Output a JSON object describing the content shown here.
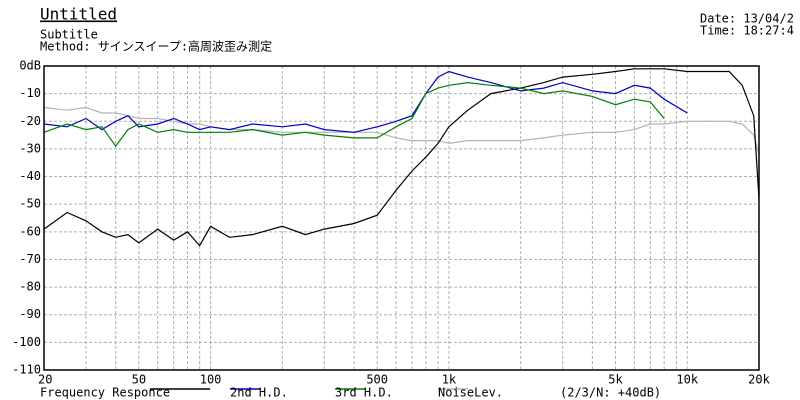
{
  "chart_data": {
    "type": "line",
    "title": "Untitled",
    "subtitle": "Subtitle",
    "method": "Method:  サインスイープ:高周波歪み測定",
    "date": "Date: 13/04/2",
    "time": "Time: 18:27:4",
    "note": "(2/3/N: +40dB)",
    "xscale": "log",
    "grid": true,
    "x": [
      20,
      25,
      30,
      35,
      40,
      45,
      50,
      60,
      70,
      80,
      90,
      100,
      120,
      150,
      200,
      250,
      300,
      400,
      500,
      600,
      700,
      800,
      900,
      1000,
      1200,
      1500,
      2000,
      2500,
      3000,
      4000,
      5000,
      6000,
      7000,
      8000,
      10000,
      12000,
      15000,
      17000,
      19000,
      20000
    ],
    "series": [
      {
        "name": "Frequency Responce",
        "color": "#000000",
        "values": [
          -59,
          -53,
          -56,
          -60,
          -62,
          -61,
          -64,
          -59,
          -63,
          -60,
          -65,
          -58,
          -62,
          -61,
          -58,
          -61,
          -59,
          -57,
          -54,
          -45,
          -38,
          -33,
          -28,
          -22,
          -16,
          -10,
          -8,
          -6,
          -4,
          -3,
          -2,
          -1,
          -1,
          -1,
          -2,
          -2,
          -2,
          -7,
          -18,
          -48
        ]
      },
      {
        "name": "2nd H.D.",
        "color": "#0000c0",
        "values": [
          -21,
          -22,
          -19,
          -23,
          -20,
          -18,
          -22,
          -21,
          -19,
          -21,
          -23,
          -22,
          -23,
          -21,
          -22,
          -21,
          -23,
          -24,
          -22,
          -20,
          -18,
          -10,
          -4,
          -2,
          -4,
          -6,
          -9,
          -8,
          -6,
          -9,
          -10,
          -7,
          -8,
          -12,
          -17,
          null,
          null,
          null,
          null,
          null
        ]
      },
      {
        "name": "3rd H.D.",
        "color": "#008000",
        "values": [
          -24,
          -21,
          -23,
          -22,
          -29,
          -23,
          -21,
          -24,
          -23,
          -24,
          -24,
          -24,
          -24,
          -23,
          -25,
          -24,
          -25,
          -26,
          -26,
          -22,
          -19,
          -10,
          -8,
          -7,
          -6,
          -7,
          -8,
          -10,
          -9,
          -11,
          -14,
          -12,
          -13,
          -19,
          null,
          null,
          null,
          null,
          null,
          null
        ]
      },
      {
        "name": "NoiseLev.",
        "color": "#b4b4b4",
        "values": [
          -15,
          -16,
          -15,
          -17,
          -17,
          -18,
          -19,
          -19,
          -20,
          -21,
          -21,
          -22,
          -23,
          -23,
          -24,
          -24,
          -24,
          -24,
          -24,
          -26,
          -27,
          -27,
          -27,
          -28,
          -27,
          -27,
          -27,
          -26,
          -25,
          -24,
          -24,
          -23,
          -21,
          -21,
          -20,
          -20,
          -20,
          -21,
          -25,
          -32
        ]
      }
    ],
    "xlim": [
      20,
      20000
    ],
    "xticks": [
      20,
      50,
      100,
      500,
      {
        "value": 1000,
        "label": "1k"
      },
      {
        "value": 5000,
        "label": "5k"
      },
      {
        "value": 10000,
        "label": "10k"
      },
      {
        "value": 20000,
        "label": "20k"
      }
    ],
    "xgrid": [
      30,
      40,
      60,
      70,
      80,
      90,
      200,
      300,
      400,
      600,
      700,
      800,
      900,
      2000,
      3000,
      4000,
      6000,
      7000,
      8000,
      9000
    ],
    "ylim": [
      -110,
      0
    ],
    "yticks": [
      {
        "value": 0,
        "label": "0dB"
      },
      -10,
      -20,
      -30,
      -40,
      -50,
      -60,
      -70,
      -80,
      -90,
      -100,
      -110
    ]
  }
}
